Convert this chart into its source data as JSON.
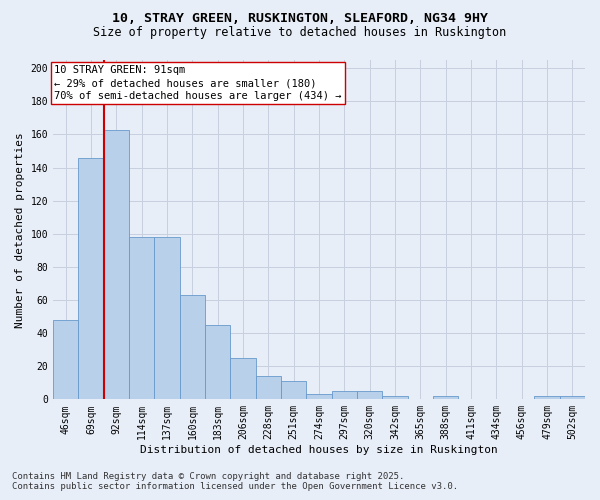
{
  "title_line1": "10, STRAY GREEN, RUSKINGTON, SLEAFORD, NG34 9HY",
  "title_line2": "Size of property relative to detached houses in Ruskington",
  "xlabel": "Distribution of detached houses by size in Ruskington",
  "ylabel": "Number of detached properties",
  "categories": [
    "46sqm",
    "69sqm",
    "92sqm",
    "114sqm",
    "137sqm",
    "160sqm",
    "183sqm",
    "206sqm",
    "228sqm",
    "251sqm",
    "274sqm",
    "297sqm",
    "320sqm",
    "342sqm",
    "365sqm",
    "388sqm",
    "411sqm",
    "434sqm",
    "456sqm",
    "479sqm",
    "502sqm"
  ],
  "values": [
    48,
    146,
    163,
    98,
    98,
    63,
    45,
    25,
    14,
    11,
    3,
    5,
    5,
    2,
    0,
    2,
    0,
    0,
    0,
    2,
    2
  ],
  "bar_color": "#b8d0ea",
  "bar_edge_color": "#6699cc",
  "vline_color": "#cc0000",
  "annotation_text": "10 STRAY GREEN: 91sqm\n← 29% of detached houses are smaller (180)\n70% of semi-detached houses are larger (434) →",
  "annotation_box_color": "#ffffff",
  "annotation_box_edge": "#cc0000",
  "ylim": [
    0,
    205
  ],
  "yticks": [
    0,
    20,
    40,
    60,
    80,
    100,
    120,
    140,
    160,
    180,
    200
  ],
  "footer_line1": "Contains HM Land Registry data © Crown copyright and database right 2025.",
  "footer_line2": "Contains public sector information licensed under the Open Government Licence v3.0.",
  "bg_color": "#e8eef8",
  "grid_color": "#c8d0e0",
  "title_fontsize": 9.5,
  "subtitle_fontsize": 8.5,
  "axis_label_fontsize": 8,
  "tick_fontsize": 7,
  "annotation_fontsize": 7.5,
  "footer_fontsize": 6.5
}
